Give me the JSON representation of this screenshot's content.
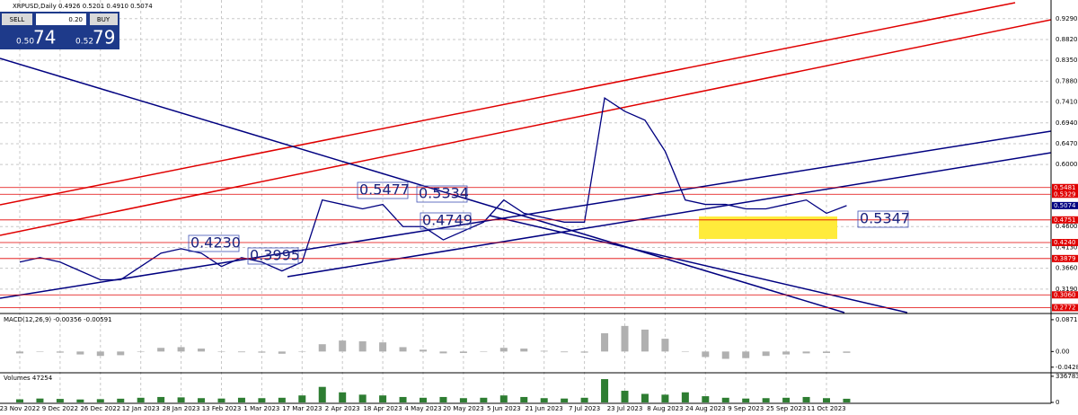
{
  "trade_panel": {
    "sell_label": "SELL",
    "buy_label": "BUY",
    "lot": "0.20",
    "sell_small": "0.50",
    "sell_big": "74",
    "buy_small": "0.52",
    "buy_big": "79"
  },
  "chart_data": [
    {
      "type": "line",
      "title": "XRPUSD,Daily 0.4926 0.5201 0.4910 0.5074",
      "categories": [
        "23 Nov 2022",
        null,
        "9 Dec 2022",
        null,
        "26 Dec 2022",
        null,
        "12 Jan 2023",
        null,
        "28 Jan 2023",
        null,
        "13 Feb 2023",
        null,
        "1 Mar 2023",
        null,
        "17 Mar 2023",
        null,
        "2 Apr 2023",
        null,
        "18 Apr 2023",
        null,
        "4 May 2023",
        null,
        "20 May 2023",
        null,
        "5 Jun 2023",
        null,
        "21 Jun 2023",
        null,
        "7 Jul 2023",
        null,
        "23 Jul 2023",
        null,
        "8 Aug 2023",
        null,
        "24 Aug 2023",
        null,
        "9 Sep 2023",
        null,
        "25 Sep 2023",
        null,
        "11 Oct 2023",
        null
      ],
      "series": [
        {
          "name": "XRPUSD",
          "color": "#000080",
          "values": [
            0.38,
            0.39,
            0.38,
            0.36,
            0.34,
            0.34,
            0.37,
            0.4,
            0.41,
            0.4,
            0.37,
            0.39,
            0.38,
            0.36,
            0.38,
            0.52,
            0.51,
            0.5,
            0.51,
            0.46,
            0.46,
            0.43,
            0.45,
            0.47,
            0.52,
            0.49,
            0.48,
            0.47,
            0.47,
            0.75,
            0.72,
            0.7,
            0.63,
            0.52,
            0.51,
            0.51,
            0.5,
            0.5,
            0.51,
            0.52,
            0.49,
            0.5074
          ]
        }
      ],
      "ylim": [
        0.266,
        0.965
      ],
      "yticks": [
        {
          "value": 0.929,
          "label": "0.9290"
        },
        {
          "value": 0.882,
          "label": "0.8820"
        },
        {
          "value": 0.835,
          "label": "0.8350"
        },
        {
          "value": 0.788,
          "label": "0.7880"
        },
        {
          "value": 0.741,
          "label": "0.7410"
        },
        {
          "value": 0.694,
          "label": "0.6940"
        },
        {
          "value": 0.647,
          "label": "0.6470"
        },
        {
          "value": 0.6,
          "label": "0.6000"
        },
        {
          "value": 0.46,
          "label": "0.4600"
        },
        {
          "value": 0.413,
          "label": "0.4130"
        },
        {
          "value": 0.366,
          "label": "0.3660"
        },
        {
          "value": 0.319,
          "label": "0.3190"
        }
      ],
      "levels": [
        {
          "value": 0.5481,
          "label": "0.5481"
        },
        {
          "value": 0.5329,
          "label": "0.5329"
        },
        {
          "value": 0.4751,
          "label": "0.4751"
        },
        {
          "value": 0.424,
          "label": "0.4240"
        },
        {
          "value": 0.3879,
          "label": "0.3879"
        },
        {
          "value": 0.306,
          "label": "0.3060"
        },
        {
          "value": 0.2772,
          "label": "0.2772"
        }
      ],
      "level_color": "#e00000",
      "last_price": 0.5074,
      "annotations": [
        "0.5477",
        "0.5334",
        "0.4749",
        "0.4230",
        "0.3995",
        "0.5347"
      ],
      "grid": true
    },
    {
      "type": "bar",
      "title": "MACD(12,26,9) -0.00356 -0.00591",
      "color": "#b0b0b0",
      "values": [
        -0.005,
        0,
        -0.003,
        -0.008,
        -0.012,
        -0.01,
        0,
        0.01,
        0.012,
        0.008,
        0,
        -0.002,
        -0.003,
        -0.006,
        0,
        0.02,
        0.03,
        0.028,
        0.025,
        0.012,
        0.005,
        -0.005,
        -0.004,
        0,
        0.01,
        0.008,
        0.002,
        -0.002,
        -0.003,
        0.05,
        0.07,
        0.06,
        0.035,
        0,
        -0.015,
        -0.02,
        -0.018,
        -0.012,
        -0.008,
        -0.005,
        -0.004,
        -0.00356
      ],
      "ylim": [
        -0.0557,
        0.1016
      ],
      "yticks": [
        0.08711,
        {
          "value": 0,
          "label": "0.00"
        },
        -0.04283
      ]
    },
    {
      "type": "bar",
      "title": "Volumes 47254",
      "color": "#2e7d32",
      "values": [
        40000,
        50000,
        45000,
        38000,
        42000,
        48000,
        60000,
        70000,
        65000,
        55000,
        50000,
        60000,
        55000,
        60000,
        90000,
        200000,
        130000,
        100000,
        90000,
        70000,
        60000,
        70000,
        55000,
        60000,
        90000,
        70000,
        55000,
        50000,
        60000,
        300000,
        150000,
        110000,
        100000,
        130000,
        80000,
        60000,
        50000,
        55000,
        60000,
        70000,
        55000,
        47254
      ],
      "ylim": [
        0,
        370000
      ],
      "yticks": [
        336783,
        0
      ]
    }
  ]
}
